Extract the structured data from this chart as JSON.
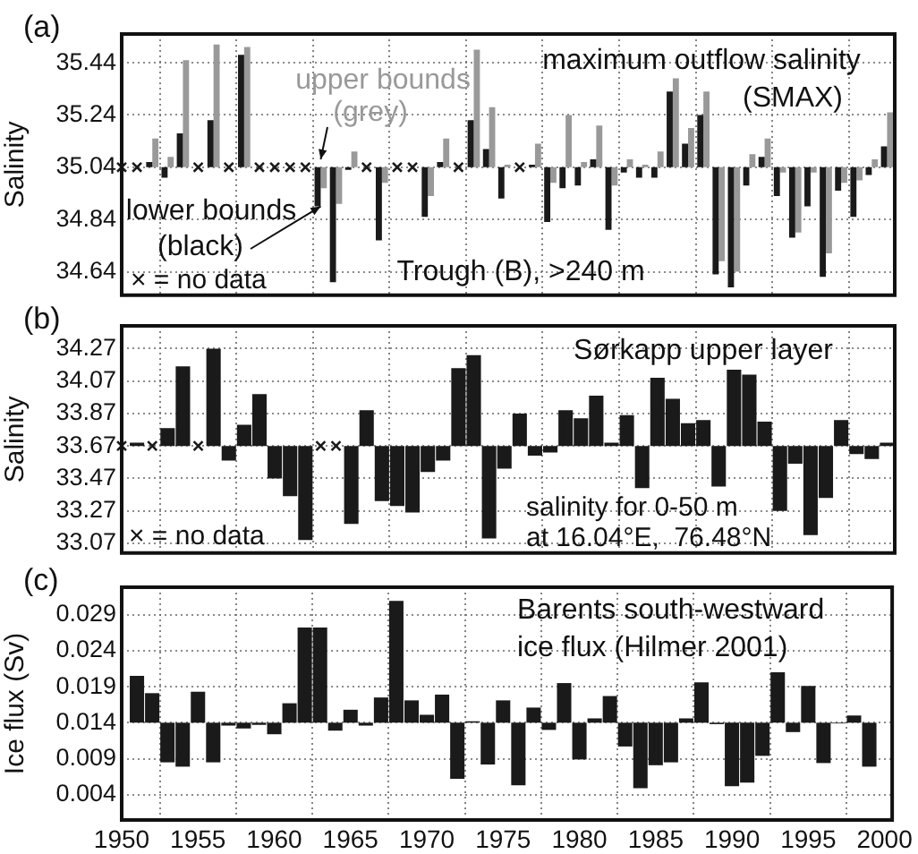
{
  "chart_data": [
    {
      "type": "bar",
      "title": "(a)",
      "ylabel": "Salinity",
      "x": [
        1952,
        1953,
        1954,
        1955,
        1956,
        1957,
        1958,
        1959,
        1960,
        1961,
        1962,
        1963,
        1964,
        1965,
        1966,
        1967,
        1968,
        1969,
        1970,
        1971,
        1972,
        1973,
        1974,
        1975,
        1976,
        1977,
        1978,
        1979,
        1980,
        1981,
        1982,
        1983,
        1984,
        1985,
        1986,
        1987,
        1988,
        1989,
        1990,
        1991,
        1992,
        1993,
        1994,
        1995,
        1996,
        1997,
        1998,
        1999,
        2000
      ],
      "series": [
        {
          "color": "#1a1a1a",
          "values": [
            0.02,
            -0.04,
            0.13,
            null,
            0.18,
            null,
            0.43,
            null,
            null,
            null,
            null,
            -0.15,
            -0.44,
            -0.01,
            null,
            -0.28,
            null,
            null,
            -0.19,
            0.02,
            null,
            0.18,
            0.07,
            -0.12,
            null,
            0.01,
            -0.21,
            -0.08,
            -0.07,
            0.03,
            -0.24,
            -0.02,
            -0.04,
            -0.04,
            0.29,
            0.09,
            0.2,
            -0.41,
            -0.46,
            -0.07,
            0.04,
            -0.11,
            -0.27,
            -0.15,
            -0.42,
            -0.09,
            -0.19,
            -0.03,
            0.08
          ],
          "base": [
            35.04,
            35.04,
            35.04,
            null,
            35.04,
            null,
            35.04,
            null,
            null,
            null,
            null,
            35.04,
            35.04,
            35.04,
            null,
            35.04,
            null,
            null,
            35.04,
            35.04,
            null,
            35.04,
            35.04,
            35.04,
            null,
            35.04,
            35.04,
            35.04,
            35.04,
            35.04,
            35.04,
            35.04,
            35.04,
            35.04,
            35.04,
            35.04,
            35.04,
            35.04,
            35.04,
            35.04,
            35.04,
            35.04,
            35.04,
            35.04,
            35.04,
            35.04,
            35.04,
            35.04,
            35.04
          ]
        },
        {
          "color": "#999999",
          "values": [
            0.11,
            0.04,
            0.41,
            null,
            0.47,
            null,
            0.46,
            null,
            null,
            null,
            null,
            -0.08,
            -0.14,
            0.06,
            null,
            -0.06,
            null,
            null,
            -0.11,
            0.11,
            null,
            0.45,
            0.23,
            0.01,
            null,
            0.09,
            -0.06,
            0.2,
            0.02,
            0.16,
            -0.07,
            0.03,
            0.01,
            0.06,
            0.34,
            0.15,
            0.29,
            -0.36,
            -0.4,
            0.05,
            0.11,
            -0.02,
            -0.25,
            -0.02,
            -0.33,
            -0.06,
            -0.05,
            0.03,
            0.21
          ],
          "base": [
            35.04,
            35.04,
            35.04,
            null,
            35.04,
            null,
            35.04,
            null,
            null,
            null,
            null,
            35.04,
            35.04,
            35.04,
            null,
            35.04,
            null,
            null,
            35.04,
            35.04,
            null,
            35.04,
            35.04,
            35.04,
            null,
            35.04,
            35.04,
            35.04,
            35.04,
            35.04,
            35.04,
            35.04,
            35.04,
            35.04,
            35.04,
            35.04,
            35.04,
            35.04,
            35.04,
            35.04,
            35.04,
            35.04,
            35.04,
            35.04,
            35.04,
            35.04,
            35.04,
            35.04,
            35.04
          ]
        },
        {
          "type": "scatter",
          "marker": "cross",
          "color": "#1a1a1a",
          "x": [
            1950,
            1951,
            1955,
            1957,
            1959,
            1960,
            1961,
            1962,
            1966,
            1968,
            1969,
            1972,
            1976
          ],
          "values": [
            35.04,
            35.04,
            35.04,
            35.04,
            35.04,
            35.04,
            35.04,
            35.04,
            35.04,
            35.04,
            35.04,
            35.04,
            35.04
          ]
        }
      ],
      "xlim": [
        1950,
        2000.5
      ],
      "xticks": [
        1950,
        1955,
        1960,
        1965,
        1970,
        1975,
        1980,
        1985,
        1990,
        1995,
        2000
      ],
      "ylim": [
        34.55,
        35.55
      ],
      "yticks": [
        34.64,
        34.84,
        35.04,
        35.24,
        35.44
      ],
      "grid": true,
      "tick_labels": "y",
      "annotations": [
        {
          "text": "upper bounds\n(grey)",
          "x": 1963,
          "y": 35.07
        },
        {
          "text": "lower bounds\n(black)",
          "x": 1963,
          "y": 34.89
        },
        "maximum outflow salinity\n(SMAX)",
        "Trough (B), >240 m",
        "× = no data"
      ]
    },
    {
      "type": "bar",
      "title": "(b)",
      "ylabel": "Salinity",
      "x": [
        1951,
        1952,
        1953,
        1954,
        1955,
        1956,
        1957,
        1958,
        1959,
        1960,
        1961,
        1962,
        1963,
        1964,
        1965,
        1966,
        1967,
        1968,
        1969,
        1970,
        1971,
        1972,
        1973,
        1974,
        1975,
        1976,
        1977,
        1978,
        1979,
        1980,
        1981,
        1982,
        1983,
        1984,
        1985,
        1986,
        1987,
        1988,
        1989,
        1990,
        1991,
        1992,
        1993,
        1994,
        1995,
        1996,
        1997,
        1998,
        1999,
        2000
      ],
      "series": [
        {
          "color": "#1a1a1a",
          "values": [
            0.02,
            null,
            0.11,
            0.49,
            null,
            0.6,
            -0.09,
            0.13,
            0.32,
            -0.2,
            -0.31,
            -0.58,
            null,
            null,
            -0.48,
            0.22,
            -0.34,
            -0.37,
            -0.41,
            -0.16,
            -0.09,
            0.48,
            0.56,
            -0.57,
            -0.14,
            0.2,
            -0.06,
            -0.04,
            0.22,
            0.17,
            0.31,
            0.02,
            0.19,
            -0.26,
            0.42,
            0.29,
            0.14,
            0.16,
            -0.25,
            0.47,
            0.44,
            0.15,
            -0.4,
            -0.11,
            -0.55,
            -0.32,
            0.16,
            -0.05,
            -0.08,
            0.02
          ],
          "base": [
            33.67,
            null,
            33.67,
            33.67,
            null,
            33.67,
            33.67,
            33.67,
            33.67,
            33.67,
            33.67,
            33.67,
            null,
            null,
            33.67,
            33.67,
            33.67,
            33.67,
            33.67,
            33.67,
            33.67,
            33.67,
            33.67,
            33.67,
            33.67,
            33.67,
            33.67,
            33.67,
            33.67,
            33.67,
            33.67,
            33.67,
            33.67,
            33.67,
            33.67,
            33.67,
            33.67,
            33.67,
            33.67,
            33.67,
            33.67,
            33.67,
            33.67,
            33.67,
            33.67,
            33.67,
            33.67,
            33.67,
            33.67,
            33.67
          ]
        },
        {
          "type": "scatter",
          "marker": "cross",
          "color": "#1a1a1a",
          "x": [
            1950,
            1952,
            1955,
            1963,
            1964
          ],
          "values": [
            33.67,
            33.67,
            33.67,
            33.67,
            33.67
          ]
        }
      ],
      "xlim": [
        1950,
        2000.5
      ],
      "xticks": [
        1950,
        1955,
        1960,
        1965,
        1970,
        1975,
        1980,
        1985,
        1990,
        1995,
        2000
      ],
      "ylim": [
        33.01,
        34.41
      ],
      "yticks": [
        33.07,
        33.27,
        33.47,
        33.67,
        33.87,
        34.07,
        34.27
      ],
      "grid": true,
      "tick_labels": "y",
      "annotations": [
        "Sørkapp upper layer",
        "× = no data",
        "salinity for 0-50 m\nat 16.04°E,  76.48°N"
      ]
    },
    {
      "type": "bar",
      "title": "(c)",
      "ylabel": "Ice flux (Sv)",
      "x": [
        1951,
        1952,
        1953,
        1954,
        1955,
        1956,
        1957,
        1958,
        1959,
        1960,
        1961,
        1962,
        1963,
        1964,
        1965,
        1966,
        1967,
        1968,
        1969,
        1970,
        1971,
        1972,
        1973,
        1974,
        1975,
        1976,
        1977,
        1978,
        1979,
        1980,
        1981,
        1982,
        1983,
        1984,
        1985,
        1986,
        1987,
        1988,
        1989,
        1990,
        1991,
        1992,
        1993,
        1994,
        1995,
        1996,
        1997,
        1998,
        1999
      ],
      "series": [
        {
          "color": "#1a1a1a",
          "values": [
            0.0065,
            0.0041,
            -0.0055,
            -0.0061,
            0.0043,
            -0.0055,
            -0.0004,
            -0.0008,
            -0.0003,
            -0.0016,
            0.0027,
            0.0132,
            0.0132,
            -0.0011,
            0.0018,
            -0.0004,
            0.0035,
            0.0169,
            0.0031,
            0.0011,
            0.0039,
            -0.0078,
            0.0002,
            -0.0058,
            0.0031,
            -0.0087,
            0.0021,
            -0.001,
            0.0055,
            -0.0051,
            0.0006,
            0.0037,
            -0.0033,
            -0.0091,
            -0.0059,
            -0.0055,
            0.0006,
            0.0056,
            -0.0002,
            -0.0088,
            -0.0083,
            -0.0046,
            0.007,
            -0.0013,
            0.0051,
            -0.0056,
            -0.0001,
            0.001,
            -0.0061
          ],
          "base": [
            0.014,
            0.014,
            0.014,
            0.014,
            0.014,
            0.014,
            0.014,
            0.014,
            0.014,
            0.014,
            0.014,
            0.014,
            0.014,
            0.014,
            0.014,
            0.014,
            0.014,
            0.014,
            0.014,
            0.014,
            0.014,
            0.014,
            0.014,
            0.014,
            0.014,
            0.014,
            0.014,
            0.014,
            0.014,
            0.014,
            0.014,
            0.014,
            0.014,
            0.014,
            0.014,
            0.014,
            0.014,
            0.014,
            0.014,
            0.014,
            0.014,
            0.014,
            0.014,
            0.014,
            0.014,
            0.014,
            0.014,
            0.014,
            0.014
          ]
        }
      ],
      "xlim": [
        1950,
        2000.5
      ],
      "xticks": [
        1950,
        1955,
        1960,
        1965,
        1970,
        1975,
        1980,
        1985,
        1990,
        1995,
        2000
      ],
      "ylim": [
        0.0005,
        0.0328
      ],
      "yticks": [
        0.004,
        0.009,
        0.014,
        0.019,
        0.024,
        0.029
      ],
      "grid": true,
      "annotations": [
        "Barents south-westward\nice flux (Hilmer 2001)"
      ]
    }
  ]
}
